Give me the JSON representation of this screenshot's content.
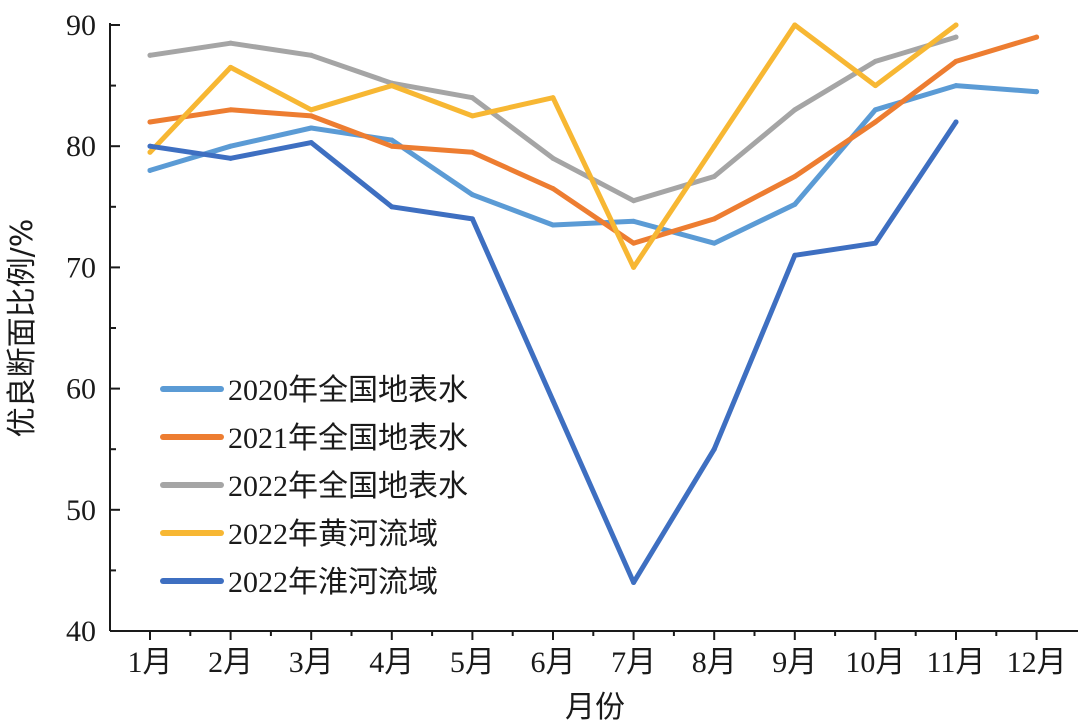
{
  "chart_data": {
    "type": "line",
    "xlabel": "月份",
    "ylabel": "优良断面比例/%",
    "ylim": [
      40,
      90
    ],
    "yticks": [
      40,
      50,
      60,
      70,
      80,
      90
    ],
    "categories": [
      "1月",
      "2月",
      "3月",
      "4月",
      "5月",
      "6月",
      "7月",
      "8月",
      "9月",
      "10月",
      "11月",
      "12月"
    ],
    "grid": false,
    "legend_position": "left",
    "series": [
      {
        "name": "2020年全国地表水",
        "color": "#5b9bd5",
        "values": [
          78,
          80,
          81.5,
          80.5,
          76,
          73.5,
          73.8,
          72,
          75.2,
          83,
          85,
          84.5
        ]
      },
      {
        "name": "2021年全国地表水",
        "color": "#ed7d31",
        "values": [
          82,
          83,
          82.5,
          80,
          79.5,
          76.5,
          72,
          74,
          77.5,
          82,
          87,
          89
        ]
      },
      {
        "name": "2022年全国地表水",
        "color": "#a5a5a5",
        "values": [
          87.5,
          88.5,
          87.5,
          85.2,
          84,
          79,
          75.5,
          77.5,
          83,
          87,
          89,
          null
        ]
      },
      {
        "name": "2022年黄河流域",
        "color": "#f7b733",
        "values": [
          79.5,
          86.5,
          83,
          85,
          82.5,
          84,
          70,
          80,
          90,
          85,
          90,
          null
        ]
      },
      {
        "name": "2022年淮河流域",
        "color": "#3e6fc1",
        "values": [
          80,
          79,
          80.3,
          75,
          74,
          59,
          44,
          55,
          71,
          72,
          82,
          null
        ]
      }
    ]
  }
}
